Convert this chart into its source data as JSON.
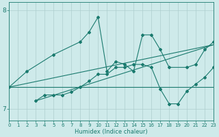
{
  "xlabel": "Humidex (Indice chaleur)",
  "bg_color": "#ceeaea",
  "line_color": "#1a7a6e",
  "grid_color": "#aecece",
  "xmin": 0,
  "xmax": 23,
  "ymin": 6.88,
  "ymax": 8.08,
  "yticks": [
    7,
    8
  ],
  "xticks": [
    0,
    1,
    2,
    3,
    4,
    5,
    6,
    7,
    8,
    9,
    10,
    11,
    12,
    13,
    14,
    15,
    16,
    17,
    18,
    19,
    20,
    21,
    22,
    23
  ],
  "line1_x": [
    0,
    2,
    5,
    8,
    9,
    10,
    11,
    12,
    13,
    14,
    15,
    16,
    17,
    18,
    20,
    21,
    22,
    23
  ],
  "line1_y": [
    7.22,
    7.38,
    7.55,
    7.68,
    7.78,
    7.93,
    7.38,
    7.48,
    7.45,
    7.38,
    7.75,
    7.75,
    7.6,
    7.42,
    7.42,
    7.45,
    7.6,
    7.68
  ],
  "line2_x": [
    0,
    2,
    6,
    7,
    13,
    14,
    17,
    18,
    19,
    20,
    23
  ],
  "line2_y": [
    7.22,
    7.22,
    7.22,
    7.22,
    7.22,
    7.22,
    7.22,
    7.22,
    7.22,
    7.22,
    7.22
  ],
  "line3_x": [
    3,
    4,
    5,
    6,
    7,
    8,
    9,
    10,
    11,
    12,
    13,
    14,
    15,
    16,
    17,
    18,
    19,
    20,
    21,
    22,
    23
  ],
  "line3_y": [
    7.08,
    7.14,
    7.14,
    7.14,
    7.17,
    7.22,
    7.28,
    7.35,
    7.35,
    7.42,
    7.42,
    7.45,
    7.45,
    7.42,
    7.2,
    7.05,
    7.05,
    7.18,
    7.25,
    7.32,
    7.42
  ],
  "line4_x": [
    0,
    23
  ],
  "line4_y": [
    7.22,
    7.65
  ],
  "line5_x": [
    3,
    23
  ],
  "line5_y": [
    7.08,
    7.65
  ]
}
